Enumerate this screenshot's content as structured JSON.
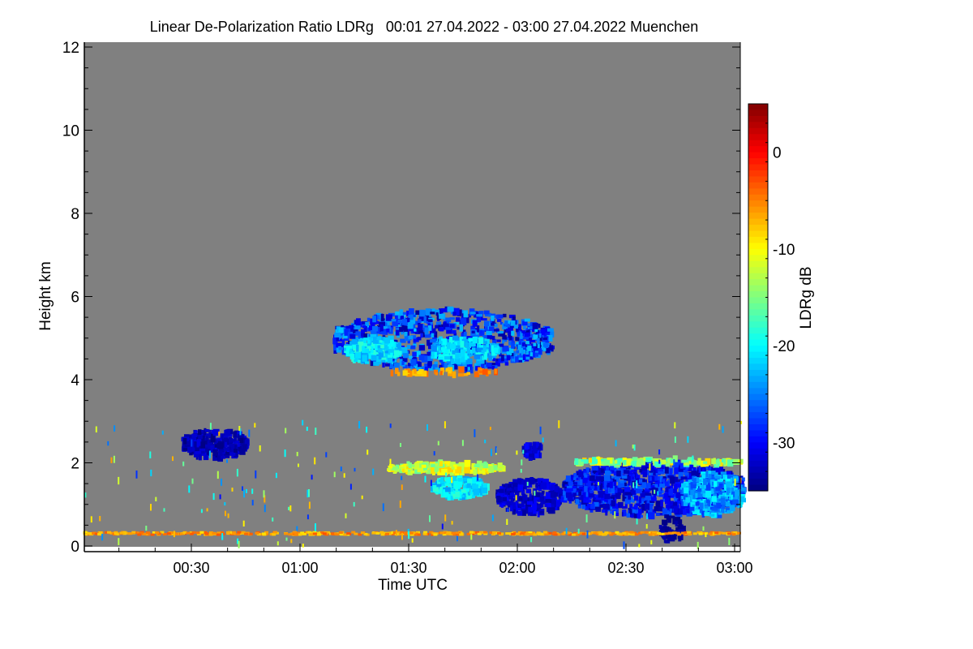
{
  "chart_data": {
    "type": "heatmap",
    "title": "Linear De-Polarization Ratio LDRg   00:01 27.04.2022 - 03:00 27.04.2022 Muenchen",
    "xlabel": "Time UTC",
    "ylabel": "Height km",
    "colorbar_label": "LDRg dB",
    "xlim_hours": [
      0,
      3.03
    ],
    "ylim": [
      -0.14,
      12.1
    ],
    "x_ticks": [
      {
        "v": 0.5,
        "label": "00:30"
      },
      {
        "v": 1.0,
        "label": "01:00"
      },
      {
        "v": 1.5,
        "label": "01:30"
      },
      {
        "v": 2.0,
        "label": "02:00"
      },
      {
        "v": 2.5,
        "label": "02:30"
      },
      {
        "v": 3.0,
        "label": "03:00"
      }
    ],
    "y_ticks": [
      {
        "v": 0,
        "label": "0"
      },
      {
        "v": 2,
        "label": "2"
      },
      {
        "v": 4,
        "label": "4"
      },
      {
        "v": 6,
        "label": "6"
      },
      {
        "v": 8,
        "label": "8"
      },
      {
        "v": 10,
        "label": "10"
      },
      {
        "v": 12,
        "label": "12"
      }
    ],
    "colorbar_range": [
      -35,
      5
    ],
    "colorbar_ticks": [
      {
        "v": 0,
        "label": "0"
      },
      {
        "v": -10,
        "label": "-10"
      },
      {
        "v": -20,
        "label": "-20"
      },
      {
        "v": -30,
        "label": "-30"
      }
    ],
    "background_color": "#808080",
    "features": [
      {
        "name": "mid-level-cloud",
        "t": [
          1.15,
          2.15
        ],
        "h": [
          4.2,
          5.7
        ],
        "value": -28,
        "spread": 6,
        "n": 900
      },
      {
        "name": "mid-level-cloud-core",
        "t": [
          1.2,
          1.45
        ],
        "h": [
          4.4,
          5.0
        ],
        "value": -21,
        "spread": 3,
        "n": 200
      },
      {
        "name": "mid-level-cloud-core2",
        "t": [
          1.6,
          1.9
        ],
        "h": [
          4.4,
          5.0
        ],
        "value": -22,
        "spread": 3,
        "n": 180
      },
      {
        "name": "cloud-base-speckle",
        "t": [
          1.4,
          1.9
        ],
        "h": [
          4.1,
          4.25
        ],
        "value": -6,
        "spread": 3,
        "n": 50
      },
      {
        "name": "small-cloud",
        "t": [
          0.45,
          0.75
        ],
        "h": [
          2.1,
          2.8
        ],
        "value": -33,
        "spread": 2,
        "n": 250
      },
      {
        "name": "low-layer-yellow",
        "t": [
          1.4,
          1.92
        ],
        "h": [
          1.75,
          2.0
        ],
        "value": -12,
        "spread": 4,
        "n": 200
      },
      {
        "name": "low-cyan-patch",
        "t": [
          1.6,
          1.85
        ],
        "h": [
          1.15,
          1.65
        ],
        "value": -21,
        "spread": 3,
        "n": 200
      },
      {
        "name": "falling-streaks",
        "t": [
          1.9,
          2.2
        ],
        "h": [
          0.75,
          1.6
        ],
        "value": -32,
        "spread": 2,
        "n": 250
      },
      {
        "name": "patch-2-05",
        "t": [
          2.02,
          2.1
        ],
        "h": [
          2.1,
          2.5
        ],
        "value": -31,
        "spread": 2,
        "n": 60
      },
      {
        "name": "late-cloud",
        "t": [
          2.2,
          3.03
        ],
        "h": [
          0.7,
          2.05
        ],
        "value": -30,
        "spread": 4,
        "n": 1100
      },
      {
        "name": "late-cloud-bright",
        "t": [
          2.75,
          3.03
        ],
        "h": [
          0.7,
          1.8
        ],
        "value": -24,
        "spread": 4,
        "n": 300
      },
      {
        "name": "late-top-yellow",
        "t": [
          2.25,
          3.03
        ],
        "h": [
          1.95,
          2.1
        ],
        "value": -13,
        "spread": 5,
        "n": 120
      },
      {
        "name": "virga",
        "t": [
          2.65,
          2.75
        ],
        "h": [
          0.05,
          0.7
        ],
        "value": -34,
        "spread": 1,
        "n": 60
      },
      {
        "name": "aerosol-line",
        "t": [
          0.0,
          3.03
        ],
        "h": [
          0.27,
          0.33
        ],
        "value": -6,
        "spread": 3,
        "n": 500
      },
      {
        "name": "speckle",
        "t": [
          0.0,
          3.03
        ],
        "h": [
          0.0,
          3.0
        ],
        "value": -18,
        "spread": 12,
        "n": 180
      }
    ]
  }
}
